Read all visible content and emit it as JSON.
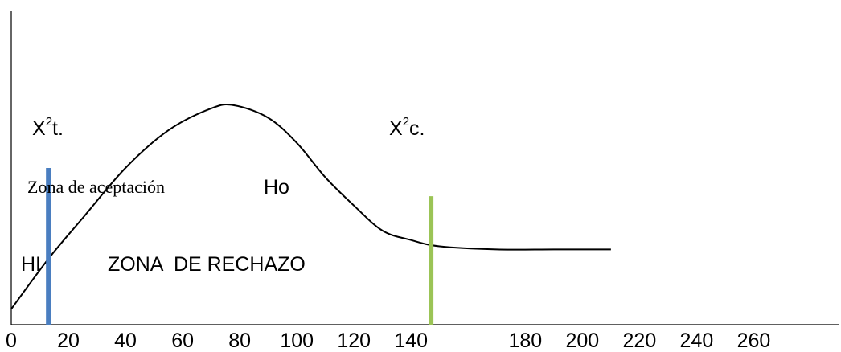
{
  "chart_data": {
    "type": "line",
    "title": "",
    "xlabel": "",
    "ylabel": "",
    "x_ticks": [
      0,
      20,
      40,
      60,
      80,
      100,
      120,
      140,
      180,
      200,
      220,
      240,
      260
    ],
    "xlim": [
      0,
      290
    ],
    "ylim": [
      0,
      1
    ],
    "grid": false,
    "legend": "none",
    "curve": {
      "x": [
        0,
        13,
        25,
        40,
        55,
        70,
        78,
        90,
        100,
        110,
        120,
        130,
        140,
        150,
        170,
        190,
        210
      ],
      "y": [
        0.05,
        0.21,
        0.34,
        0.5,
        0.62,
        0.69,
        0.7,
        0.66,
        0.58,
        0.47,
        0.38,
        0.3,
        0.27,
        0.25,
        0.24,
        0.24,
        0.24
      ],
      "color": "#000000"
    },
    "markers": [
      {
        "x": 13,
        "y_top": 0.5,
        "color": "#4a7ec0"
      },
      {
        "x": 147,
        "y_top": 0.41,
        "color": "#9bc456"
      }
    ],
    "annotations": {
      "chi_t": {
        "base": "X",
        "sup": "2",
        "rest": "t."
      },
      "chi_c": {
        "base": "X",
        "sup": "2",
        "rest": "c."
      },
      "acceptance": "Zona de aceptación",
      "ho": "Ho",
      "hi": "HI",
      "rejection": "ZONA  DE RECHAZO"
    }
  }
}
